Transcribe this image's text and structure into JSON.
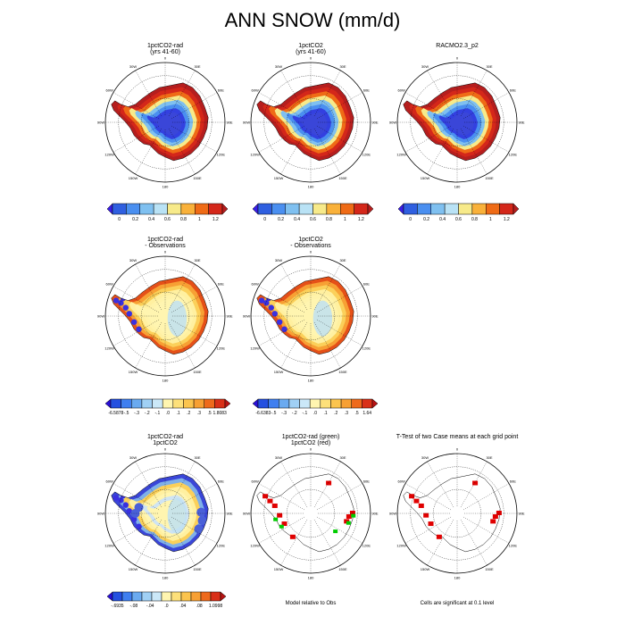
{
  "title": "ANN SNOW (mm/d)",
  "panels": [
    {
      "id": "p1",
      "title": [
        "1pctCO2-rad",
        "(yrs 41-60)"
      ],
      "style": "abs"
    },
    {
      "id": "p2",
      "title": [
        "1pctCO2",
        "(yrs 41-60)"
      ],
      "style": "abs"
    },
    {
      "id": "p3",
      "title": [
        "RACMO2.3_p2",
        ""
      ],
      "style": "abs"
    },
    {
      "id": "p4",
      "title": [
        "1pctCO2-rad",
        "- Observations"
      ],
      "style": "diff"
    },
    {
      "id": "p5",
      "title": [
        "1pctCO2",
        "- Observations"
      ],
      "style": "diff"
    },
    {
      "id": "p7",
      "title": [
        "1pctCO2-rad",
        "1pctCO2"
      ],
      "style": "diff2"
    },
    {
      "id": "p8",
      "title": [
        "1pctCO2-rad (green)",
        "1pctCO2 (red)"
      ],
      "style": "rel"
    },
    {
      "id": "p9",
      "title": [
        "T-Test of two Case means at each grid point",
        ""
      ],
      "style": "ttest"
    }
  ],
  "notes": {
    "p8": "Model relative to Obs",
    "p9": "Cells are significant at 0.1 level"
  },
  "lon_labels": [
    "0",
    "30E",
    "60E",
    "90E",
    "120E",
    "150E",
    "180",
    "150W",
    "120W",
    "90W",
    "60W",
    "30W"
  ],
  "colorbars": [
    {
      "id": "cb-abs-1",
      "colors": [
        "#3a1ee6",
        "#2f5fe0",
        "#4a8ff0",
        "#7fc0f0",
        "#b9e2f5",
        "#f7ea8a",
        "#f9b13a",
        "#ef6b16",
        "#d4271a",
        "#b51e1e"
      ],
      "labels": [
        "0",
        "0.2",
        "0.4",
        "0.6",
        "0.8",
        "1",
        "1.2"
      ]
    },
    {
      "id": "cb-abs-2",
      "colors": [
        "#3a1ee6",
        "#2f5fe0",
        "#4a8ff0",
        "#7fc0f0",
        "#b9e2f5",
        "#f7ea8a",
        "#f9b13a",
        "#ef6b16",
        "#d4271a",
        "#b51e1e"
      ],
      "labels": [
        "0",
        "0.2",
        "0.4",
        "0.6",
        "0.8",
        "1",
        "1.2"
      ]
    },
    {
      "id": "cb-abs-3",
      "colors": [
        "#3a1ee6",
        "#2f5fe0",
        "#4a8ff0",
        "#7fc0f0",
        "#b9e2f5",
        "#f7ea8a",
        "#f9b13a",
        "#ef6b16",
        "#d4271a",
        "#b51e1e"
      ],
      "labels": [
        "0",
        "0.2",
        "0.4",
        "0.6",
        "0.8",
        "1",
        "1.2"
      ]
    },
    {
      "id": "cb-diff-1",
      "colors": [
        "#2a10d8",
        "#2450e0",
        "#3f7ff0",
        "#6aaaf0",
        "#a0d0f5",
        "#cbe8f8",
        "#fff5b0",
        "#fde07a",
        "#fbc44e",
        "#f7a034",
        "#ee6a1c",
        "#d93018",
        "#b81414"
      ],
      "labels": [
        "-6.5878",
        "-.5",
        "-.3",
        "-.2",
        "-.1",
        ".0",
        ".1",
        ".2",
        ".3",
        ".5",
        "1.8083"
      ]
    },
    {
      "id": "cb-diff-2",
      "colors": [
        "#2a10d8",
        "#2450e0",
        "#3f7ff0",
        "#6aaaf0",
        "#a0d0f5",
        "#cbe8f8",
        "#fff5b0",
        "#fde07a",
        "#fbc44e",
        "#f7a034",
        "#ee6a1c",
        "#d93018",
        "#b81414"
      ],
      "labels": [
        "-6.6383",
        "-.5",
        "-.3",
        "-.2",
        "-.1",
        ".0",
        ".1",
        ".2",
        ".3",
        ".5",
        "1.64"
      ]
    },
    {
      "id": "cb-diff2",
      "colors": [
        "#2a10d8",
        "#2450e0",
        "#3f7ff0",
        "#6aaaf0",
        "#a0d0f5",
        "#cbe8f8",
        "#fff5b0",
        "#fde07a",
        "#fbc44e",
        "#f7a034",
        "#ee6a1c",
        "#d93018",
        "#b81414"
      ],
      "labels": [
        "-.6935",
        "-.08",
        "-.04",
        ".0",
        ".04",
        ".08",
        "1.0998"
      ]
    }
  ],
  "chart_data": {
    "type": "heatmap",
    "title": "ANN SNOW (mm/d)",
    "map_projection": "south polar stereographic",
    "grid": true,
    "panels": [
      {
        "title": "1pctCO2-rad (yrs 41-60)",
        "colorbar_range": [
          0,
          1.2
        ],
        "interior": 0.0,
        "coast": 1.2
      },
      {
        "title": "1pctCO2 (yrs 41-60)",
        "colorbar_range": [
          0,
          1.2
        ],
        "interior": 0.0,
        "coast": 1.2
      },
      {
        "title": "RACMO2.3_p2",
        "colorbar_range": [
          0,
          1.2
        ],
        "interior": 0.0,
        "coast": 1.2
      },
      {
        "title": "1pctCO2-rad - Observations",
        "colorbar_range": [
          -6.5878,
          1.8083
        ]
      },
      {
        "title": "1pctCO2 - Observations",
        "colorbar_range": [
          -6.6383,
          1.64
        ]
      },
      {
        "title": "1pctCO2-rad 1pctCO2",
        "colorbar_range": [
          -0.6935,
          1.0998
        ]
      },
      {
        "title": "1pctCO2-rad (green) 1pctCO2 (red)",
        "note": "Model relative to Obs"
      },
      {
        "title": "T-Test of two Case means at each grid point",
        "note": "Cells are significant at 0.1 level"
      }
    ]
  }
}
